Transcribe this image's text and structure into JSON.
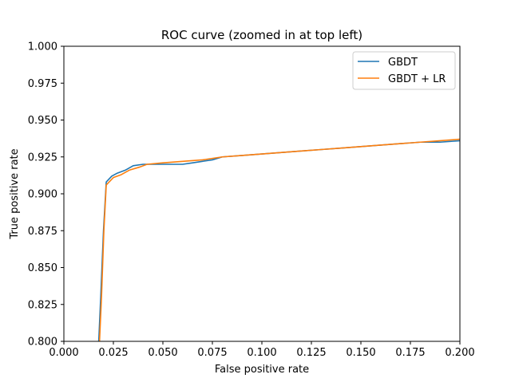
{
  "chart_data": {
    "type": "line",
    "title": "ROC curve (zoomed in at top left)",
    "xlabel": "False positive rate",
    "ylabel": "True positive rate",
    "xlim": [
      0.0,
      0.2
    ],
    "ylim": [
      0.8,
      1.0
    ],
    "xticks": [
      0.0,
      0.025,
      0.05,
      0.075,
      0.1,
      0.125,
      0.15,
      0.175,
      0.2
    ],
    "xtick_labels": [
      "0.000",
      "0.025",
      "0.050",
      "0.075",
      "0.100",
      "0.125",
      "0.150",
      "0.175",
      "0.200"
    ],
    "yticks": [
      0.8,
      0.825,
      0.85,
      0.875,
      0.9,
      0.925,
      0.95,
      0.975,
      1.0
    ],
    "ytick_labels": [
      "0.800",
      "0.825",
      "0.850",
      "0.875",
      "0.900",
      "0.925",
      "0.950",
      "0.975",
      "1.000"
    ],
    "grid": false,
    "legend_position": "top-right",
    "series": [
      {
        "name": "GBDT",
        "color": "#1f77b4",
        "points": [
          [
            0.0176,
            0.8
          ],
          [
            0.0186,
            0.83
          ],
          [
            0.02,
            0.875
          ],
          [
            0.0214,
            0.908
          ],
          [
            0.0242,
            0.912
          ],
          [
            0.027,
            0.914
          ],
          [
            0.031,
            0.916
          ],
          [
            0.035,
            0.919
          ],
          [
            0.04,
            0.92
          ],
          [
            0.05,
            0.92
          ],
          [
            0.06,
            0.92
          ],
          [
            0.065,
            0.921
          ],
          [
            0.07,
            0.922
          ],
          [
            0.075,
            0.923
          ],
          [
            0.08,
            0.925
          ],
          [
            0.09,
            0.926
          ],
          [
            0.1,
            0.927
          ],
          [
            0.11,
            0.928
          ],
          [
            0.12,
            0.929
          ],
          [
            0.13,
            0.93
          ],
          [
            0.14,
            0.931
          ],
          [
            0.15,
            0.932
          ],
          [
            0.16,
            0.933
          ],
          [
            0.17,
            0.934
          ],
          [
            0.18,
            0.935
          ],
          [
            0.19,
            0.935
          ],
          [
            0.2,
            0.936
          ]
        ]
      },
      {
        "name": "GBDT + LR",
        "color": "#ff7f0e",
        "points": [
          [
            0.018,
            0.8
          ],
          [
            0.019,
            0.83
          ],
          [
            0.0202,
            0.875
          ],
          [
            0.0214,
            0.906
          ],
          [
            0.025,
            0.911
          ],
          [
            0.029,
            0.913
          ],
          [
            0.033,
            0.916
          ],
          [
            0.038,
            0.918
          ],
          [
            0.042,
            0.92
          ],
          [
            0.05,
            0.921
          ],
          [
            0.06,
            0.922
          ],
          [
            0.07,
            0.923
          ],
          [
            0.08,
            0.925
          ],
          [
            0.09,
            0.926
          ],
          [
            0.1,
            0.927
          ],
          [
            0.11,
            0.928
          ],
          [
            0.12,
            0.929
          ],
          [
            0.13,
            0.93
          ],
          [
            0.14,
            0.931
          ],
          [
            0.15,
            0.932
          ],
          [
            0.16,
            0.933
          ],
          [
            0.17,
            0.934
          ],
          [
            0.18,
            0.935
          ],
          [
            0.19,
            0.936
          ],
          [
            0.2,
            0.937
          ]
        ]
      }
    ]
  }
}
